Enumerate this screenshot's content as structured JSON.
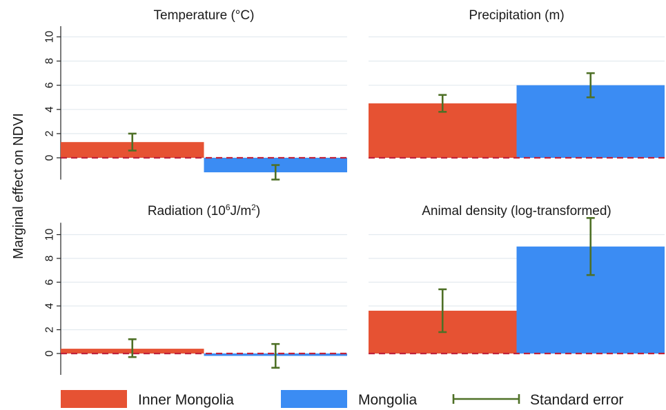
{
  "chart_data": {
    "type": "bar",
    "ylabel": "Marginal effect on NDVI",
    "yticks": [
      0,
      2,
      4,
      6,
      8,
      10
    ],
    "ylim": [
      -1.8,
      11
    ],
    "series": [
      {
        "name": "Inner Mongolia",
        "color": "#e65233"
      },
      {
        "name": "Mongolia",
        "color": "#3b8cf3"
      }
    ],
    "error_legend": "Standard error",
    "error_color": "#4e7026",
    "zero_line_color": "#c0223a",
    "grid": true,
    "legend_position": "bottom",
    "panels": [
      {
        "title": "Temperature (°C)",
        "values": [
          1.3,
          -1.2
        ],
        "errors": [
          [
            0.6,
            2.0
          ],
          [
            -1.8,
            -0.6
          ]
        ]
      },
      {
        "title": "Precipitation (m)",
        "values": [
          4.5,
          6.0
        ],
        "errors": [
          [
            3.8,
            5.2
          ],
          [
            5.0,
            7.0
          ]
        ]
      },
      {
        "title": "Radiation (10^6 J/m^2)",
        "title_parts": {
          "pre": "Radiation (10",
          "sup1": "6",
          "mid": "J/m",
          "sup2": "2",
          "post": ")"
        },
        "values": [
          0.4,
          -0.2
        ],
        "errors": [
          [
            -0.3,
            1.2
          ],
          [
            -1.2,
            0.8
          ]
        ]
      },
      {
        "title": "Animal density (log-transformed)",
        "values": [
          3.6,
          9.0
        ],
        "errors": [
          [
            1.8,
            5.4
          ],
          [
            6.6,
            11.4
          ]
        ]
      }
    ]
  }
}
